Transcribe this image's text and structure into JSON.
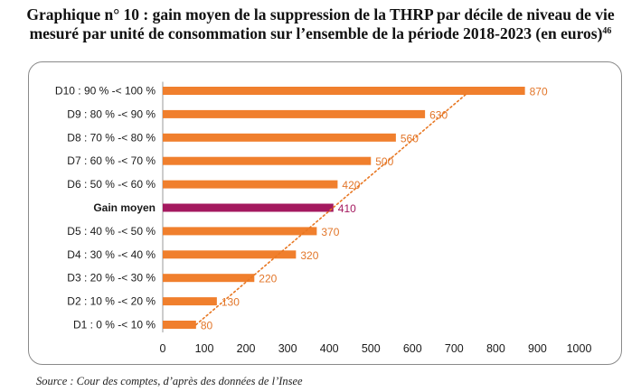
{
  "title": {
    "line1": "Graphique n° 10 : gain moyen de la suppression de la THRP par décile de niveau de vie",
    "line2": "mesuré par unité de consommation sur l’ensemble de la période 2018-2023 (en euros)",
    "footnote": "46"
  },
  "source": "Source : Cour des comptes, d’après des données de l’Insee",
  "chart_data": {
    "type": "bar",
    "orientation": "horizontal",
    "categories": [
      "D10 : 90 % -< 100 %",
      "D9 : 80 % -< 90 %",
      "D8 : 70 % -< 80 %",
      "D7 : 60 % -< 70 %",
      "D6 : 50 % -< 60 %",
      "Gain moyen",
      "D5 : 40 % -< 50 %",
      "D4 : 30 % -< 40 %",
      "D3 : 20 % -< 30 %",
      "D2 : 10 % -< 20 %",
      "D1 : 0 % -< 10 %"
    ],
    "values": [
      870,
      630,
      560,
      500,
      420,
      410,
      370,
      320,
      220,
      130,
      80
    ],
    "value_labels": [
      "870",
      "630",
      "560",
      "500",
      "420",
      "410",
      "370",
      "320",
      "220",
      "130",
      "80"
    ],
    "highlight_category": "Gain moyen",
    "x_ticks": [
      "0",
      "100",
      "200",
      "300",
      "400",
      "500",
      "600",
      "700",
      "800",
      "900",
      "1000"
    ],
    "xlim": [
      0,
      1000
    ],
    "trendline": "dotted",
    "colors": {
      "bar": "#f07f2d",
      "highlight": "#a4195f",
      "label": "#e2762a",
      "highlight_label": "#a4195f",
      "trend": "#e87722"
    }
  }
}
